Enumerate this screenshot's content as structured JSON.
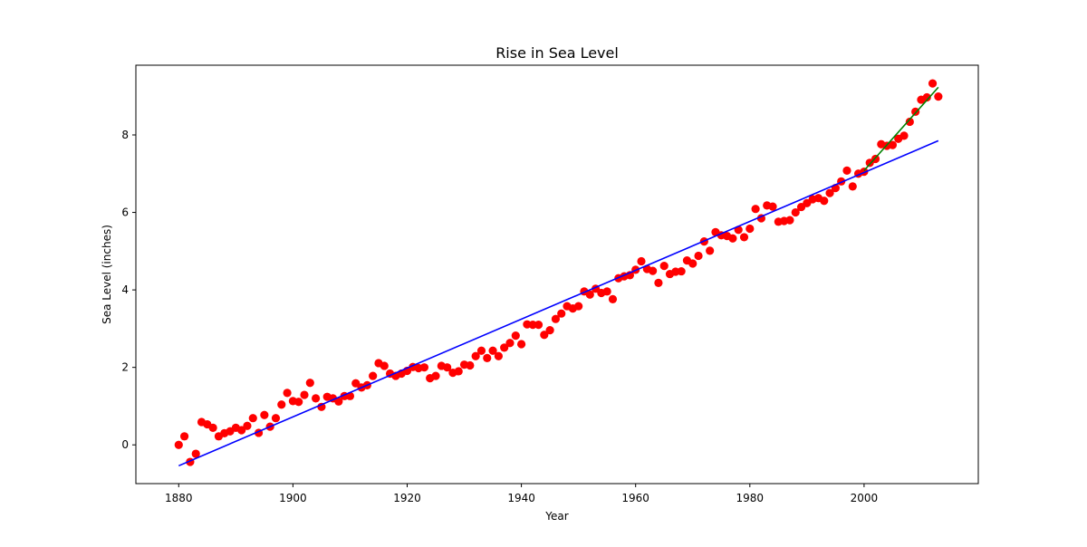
{
  "chart_data": {
    "type": "scatter",
    "title": "Rise in Sea Level",
    "xlabel": "Year",
    "ylabel": "Sea Level (inches)",
    "xlim": [
      1872.5,
      2020.0
    ],
    "ylim": [
      -1.0,
      9.8
    ],
    "x_ticks": [
      1880,
      1900,
      1920,
      1940,
      1960,
      1980,
      2000
    ],
    "y_ticks": [
      0,
      2,
      4,
      6,
      8
    ],
    "grid": false,
    "legend": "none",
    "series": [
      {
        "kind": "scatter",
        "color": "#ff0000",
        "x": [
          1880,
          1881,
          1882,
          1883,
          1884,
          1885,
          1886,
          1887,
          1888,
          1889,
          1890,
          1891,
          1892,
          1893,
          1894,
          1895,
          1896,
          1897,
          1898,
          1899,
          1900,
          1901,
          1902,
          1903,
          1904,
          1905,
          1906,
          1907,
          1908,
          1909,
          1910,
          1911,
          1912,
          1913,
          1914,
          1915,
          1916,
          1917,
          1918,
          1919,
          1920,
          1921,
          1922,
          1923,
          1924,
          1925,
          1926,
          1927,
          1928,
          1929,
          1930,
          1931,
          1932,
          1933,
          1934,
          1935,
          1936,
          1937,
          1938,
          1939,
          1940,
          1941,
          1942,
          1943,
          1944,
          1945,
          1946,
          1947,
          1948,
          1949,
          1950,
          1951,
          1952,
          1953,
          1954,
          1955,
          1956,
          1957,
          1958,
          1959,
          1960,
          1961,
          1962,
          1963,
          1964,
          1965,
          1966,
          1967,
          1968,
          1969,
          1970,
          1971,
          1972,
          1973,
          1974,
          1975,
          1976,
          1977,
          1978,
          1979,
          1980,
          1981,
          1982,
          1983,
          1984,
          1985,
          1986,
          1987,
          1988,
          1989,
          1990,
          1991,
          1992,
          1993,
          1994,
          1995,
          1996,
          1997,
          1998,
          1999,
          2000,
          2001,
          2002,
          2003,
          2004,
          2005,
          2006,
          2007,
          2008,
          2009,
          2010,
          2011,
          2012,
          2013
        ],
        "y": [
          0.0,
          0.22,
          -0.44,
          -0.23,
          0.59,
          0.53,
          0.44,
          0.22,
          0.3,
          0.35,
          0.44,
          0.38,
          0.49,
          0.69,
          0.31,
          0.77,
          0.47,
          0.69,
          1.04,
          1.34,
          1.13,
          1.11,
          1.29,
          1.6,
          1.2,
          0.98,
          1.24,
          1.2,
          1.12,
          1.26,
          1.26,
          1.59,
          1.48,
          1.54,
          1.78,
          2.11,
          2.04,
          1.84,
          1.78,
          1.84,
          1.91,
          2.01,
          1.98,
          2.0,
          1.72,
          1.78,
          2.04,
          2.0,
          1.86,
          1.9,
          2.07,
          2.05,
          2.29,
          2.43,
          2.24,
          2.43,
          2.29,
          2.51,
          2.63,
          2.82,
          2.6,
          3.11,
          3.1,
          3.1,
          2.84,
          2.96,
          3.25,
          3.39,
          3.58,
          3.52,
          3.58,
          3.96,
          3.88,
          4.03,
          3.92,
          3.96,
          3.76,
          4.3,
          4.35,
          4.38,
          4.52,
          4.74,
          4.54,
          4.49,
          4.18,
          4.62,
          4.41,
          4.47,
          4.48,
          4.76,
          4.68,
          4.88,
          5.25,
          5.01,
          5.49,
          5.41,
          5.39,
          5.33,
          5.55,
          5.36,
          5.58,
          6.09,
          5.85,
          6.18,
          6.15,
          5.76,
          5.78,
          5.8,
          6.0,
          6.14,
          6.24,
          6.34,
          6.37,
          6.3,
          6.5,
          6.63,
          6.8,
          7.08,
          6.67,
          7.0,
          7.05,
          7.28,
          7.38,
          7.76,
          7.72,
          7.74,
          7.9,
          7.98,
          8.34,
          8.6,
          8.91,
          8.97,
          9.33,
          8.99
        ]
      },
      {
        "kind": "line",
        "color": "#0000ff",
        "x": [
          1880,
          2013
        ],
        "y": [
          -0.54,
          7.85
        ]
      },
      {
        "kind": "line",
        "color": "#008000",
        "x": [
          2000,
          2013
        ],
        "y": [
          7.08,
          9.23
        ]
      }
    ]
  }
}
